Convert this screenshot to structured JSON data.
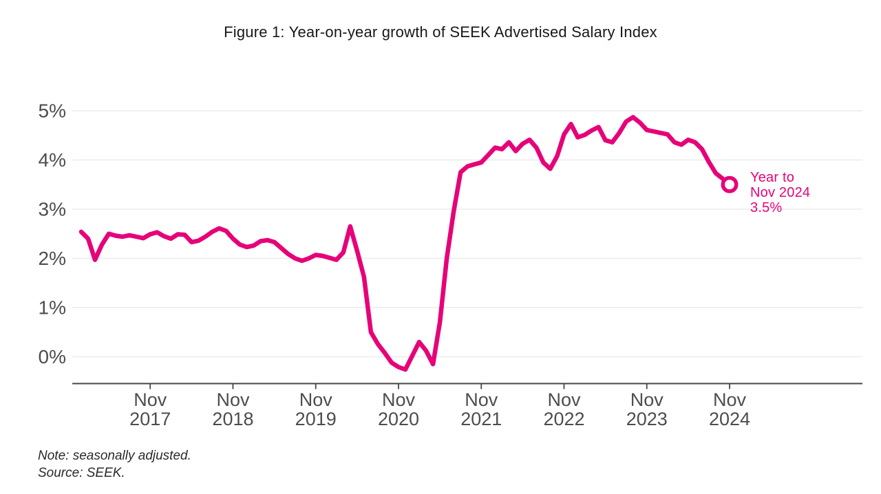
{
  "title": "Figure 1: Year-on-year growth of SEEK Advertised Salary Index",
  "annotation": {
    "lines": [
      "Year to",
      "Nov 2024",
      "3.5%"
    ]
  },
  "notes": {
    "note": "Note: seasonally adjusted.",
    "source": "Source: SEEK."
  },
  "colors": {
    "line_pink": "#e60278",
    "annotation_pink": "#e60278",
    "gridline": "#ebebeb",
    "axis_line": "#454545",
    "axis_text": "#4d4d4d",
    "title_text": "#181818",
    "background": "#ffffff",
    "marker_fill": "#ffffff"
  },
  "chart_data": {
    "type": "line",
    "title": "Figure 1: Year-on-year growth of SEEK Advertised Salary Index",
    "series_name": "SEEK Advertised Salary Index year-on-year growth",
    "unit": "%",
    "grid": true,
    "x_start_month": "2017-01",
    "x_end_month": "2024-11",
    "x_frequency": "monthly",
    "ylim": [
      -0.5,
      5.3
    ],
    "y_ticks": [
      {
        "label": "5%",
        "value": 5
      },
      {
        "label": "4%",
        "value": 4
      },
      {
        "label": "3%",
        "value": 3
      },
      {
        "label": "2%",
        "value": 2
      },
      {
        "label": "1%",
        "value": 1
      },
      {
        "label": "0%",
        "value": 0
      }
    ],
    "x_ticks": [
      {
        "month": "Nov",
        "year": "2017",
        "index": 10
      },
      {
        "month": "Nov",
        "year": "2018",
        "index": 22
      },
      {
        "month": "Nov",
        "year": "2019",
        "index": 34
      },
      {
        "month": "Nov",
        "year": "2020",
        "index": 46
      },
      {
        "month": "Nov",
        "year": "2021",
        "index": 58
      },
      {
        "month": "Nov",
        "year": "2022",
        "index": 70
      },
      {
        "month": "Nov",
        "year": "2023",
        "index": 82
      },
      {
        "month": "Nov",
        "year": "2024",
        "index": 94
      }
    ],
    "values": [
      2.54,
      2.4,
      1.97,
      2.28,
      2.5,
      2.46,
      2.44,
      2.47,
      2.44,
      2.41,
      2.49,
      2.53,
      2.45,
      2.4,
      2.49,
      2.48,
      2.33,
      2.36,
      2.44,
      2.54,
      2.61,
      2.56,
      2.4,
      2.28,
      2.23,
      2.26,
      2.35,
      2.37,
      2.33,
      2.21,
      2.09,
      2.0,
      1.95,
      2.0,
      2.07,
      2.05,
      2.01,
      1.97,
      2.12,
      2.65,
      2.15,
      1.62,
      0.5,
      0.26,
      0.08,
      -0.12,
      -0.21,
      -0.26,
      0.02,
      0.3,
      0.12,
      -0.15,
      0.7,
      2.0,
      2.95,
      3.75,
      3.87,
      3.91,
      3.95,
      4.1,
      4.25,
      4.22,
      4.36,
      4.18,
      4.33,
      4.41,
      4.25,
      3.95,
      3.82,
      4.08,
      4.52,
      4.73,
      4.46,
      4.51,
      4.6,
      4.67,
      4.4,
      4.36,
      4.55,
      4.78,
      4.87,
      4.76,
      4.61,
      4.58,
      4.55,
      4.52,
      4.36,
      4.31,
      4.41,
      4.36,
      4.22,
      3.96,
      3.73,
      3.62,
      3.5
    ],
    "end_marker": {
      "label": "Year to Nov 2024",
      "value": 3.5,
      "style": "open-circle"
    }
  }
}
